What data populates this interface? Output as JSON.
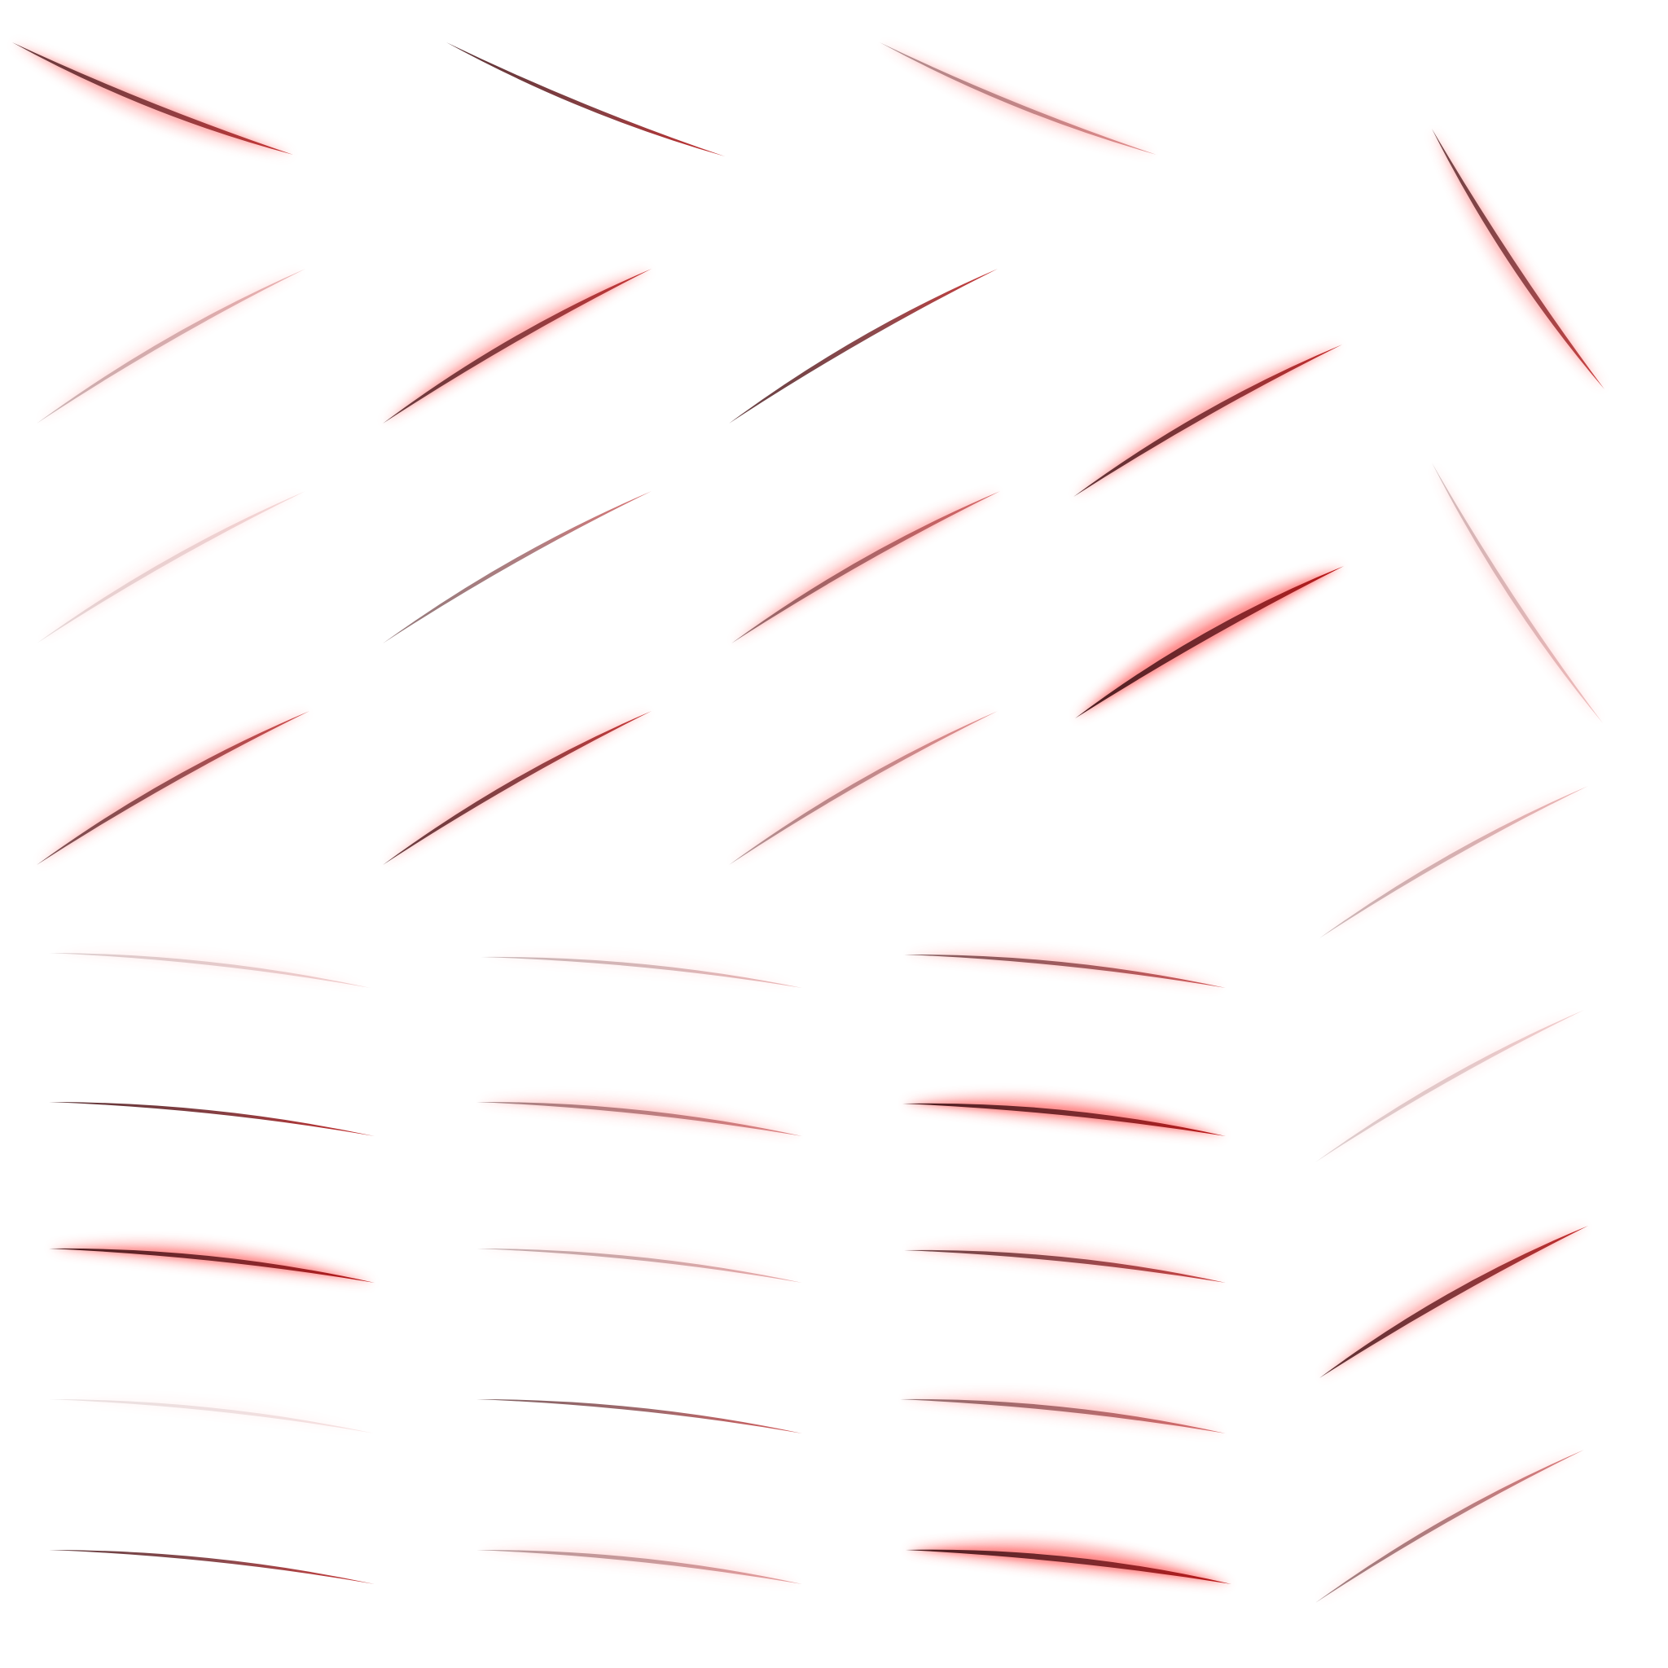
{
  "sprite_sheet": {
    "background": "#ffffff",
    "palette": {
      "dark_core": "#4a1f22",
      "red_core": "#c21818",
      "glow": "#ff4040"
    },
    "sprite_count": 37,
    "sprites": [
      {
        "kind": "slash",
        "glow": 0.55,
        "core": 0.85
      },
      {
        "kind": "slash",
        "glow": 0.0,
        "core": 0.9
      },
      {
        "kind": "slash",
        "glow": 0.35,
        "core": 0.45
      },
      {
        "kind": "slash",
        "glow": 0.45,
        "core": 0.8
      },
      {
        "kind": "slash",
        "glow": 0.2,
        "core": 0.3
      },
      {
        "kind": "slash",
        "glow": 0.6,
        "core": 0.85
      },
      {
        "kind": "slash",
        "glow": 0.0,
        "core": 0.85
      },
      {
        "kind": "slash",
        "glow": 0.6,
        "core": 0.9
      },
      {
        "kind": "slash",
        "glow": 0.12,
        "core": 0.15
      },
      {
        "kind": "slash",
        "glow": 0.0,
        "core": 0.6
      },
      {
        "kind": "slash",
        "glow": 0.5,
        "core": 0.6
      },
      {
        "kind": "slash",
        "glow": 0.9,
        "core": 1.0
      },
      {
        "kind": "slash",
        "glow": 0.2,
        "core": 0.25
      },
      {
        "kind": "slash",
        "glow": 0.45,
        "core": 0.75
      },
      {
        "kind": "slash",
        "glow": 0.4,
        "core": 0.85
      },
      {
        "kind": "slash",
        "glow": 0.3,
        "core": 0.45
      },
      {
        "kind": "slash",
        "glow": 0.15,
        "core": 0.3
      },
      {
        "kind": "slash",
        "glow": 0.1,
        "core": 0.2
      },
      {
        "kind": "slash",
        "glow": 0.1,
        "core": 0.3
      },
      {
        "kind": "slash",
        "glow": 0.35,
        "core": 0.7
      },
      {
        "kind": "slash",
        "glow": 0.1,
        "core": 0.2
      },
      {
        "kind": "slash",
        "glow": 0.0,
        "core": 0.9
      },
      {
        "kind": "slash",
        "glow": 0.35,
        "core": 0.5
      },
      {
        "kind": "slash",
        "glow": 0.9,
        "core": 1.0
      },
      {
        "kind": "slash",
        "glow": 0.5,
        "core": 0.9
      },
      {
        "kind": "slash",
        "glow": 0.15,
        "core": 0.35
      },
      {
        "kind": "slash",
        "glow": 0.4,
        "core": 0.8
      },
      {
        "kind": "slash",
        "glow": 0.85,
        "core": 1.0
      },
      {
        "kind": "slash",
        "glow": 0.05,
        "core": 0.12
      },
      {
        "kind": "slash",
        "glow": 0.0,
        "core": 0.7
      },
      {
        "kind": "slash",
        "glow": 0.35,
        "core": 0.6
      },
      {
        "kind": "slash",
        "glow": 0.0,
        "core": 0.85
      },
      {
        "kind": "slash",
        "glow": 0.2,
        "core": 0.4
      },
      {
        "kind": "slash",
        "glow": 0.95,
        "core": 1.0
      },
      {
        "kind": "slash",
        "glow": 0.2,
        "core": 0.55
      },
      {
        "kind": "slash",
        "glow": 0.15,
        "core": 0.2
      },
      {
        "kind": "slash",
        "glow": 0.1,
        "core": 0.25
      }
    ]
  }
}
